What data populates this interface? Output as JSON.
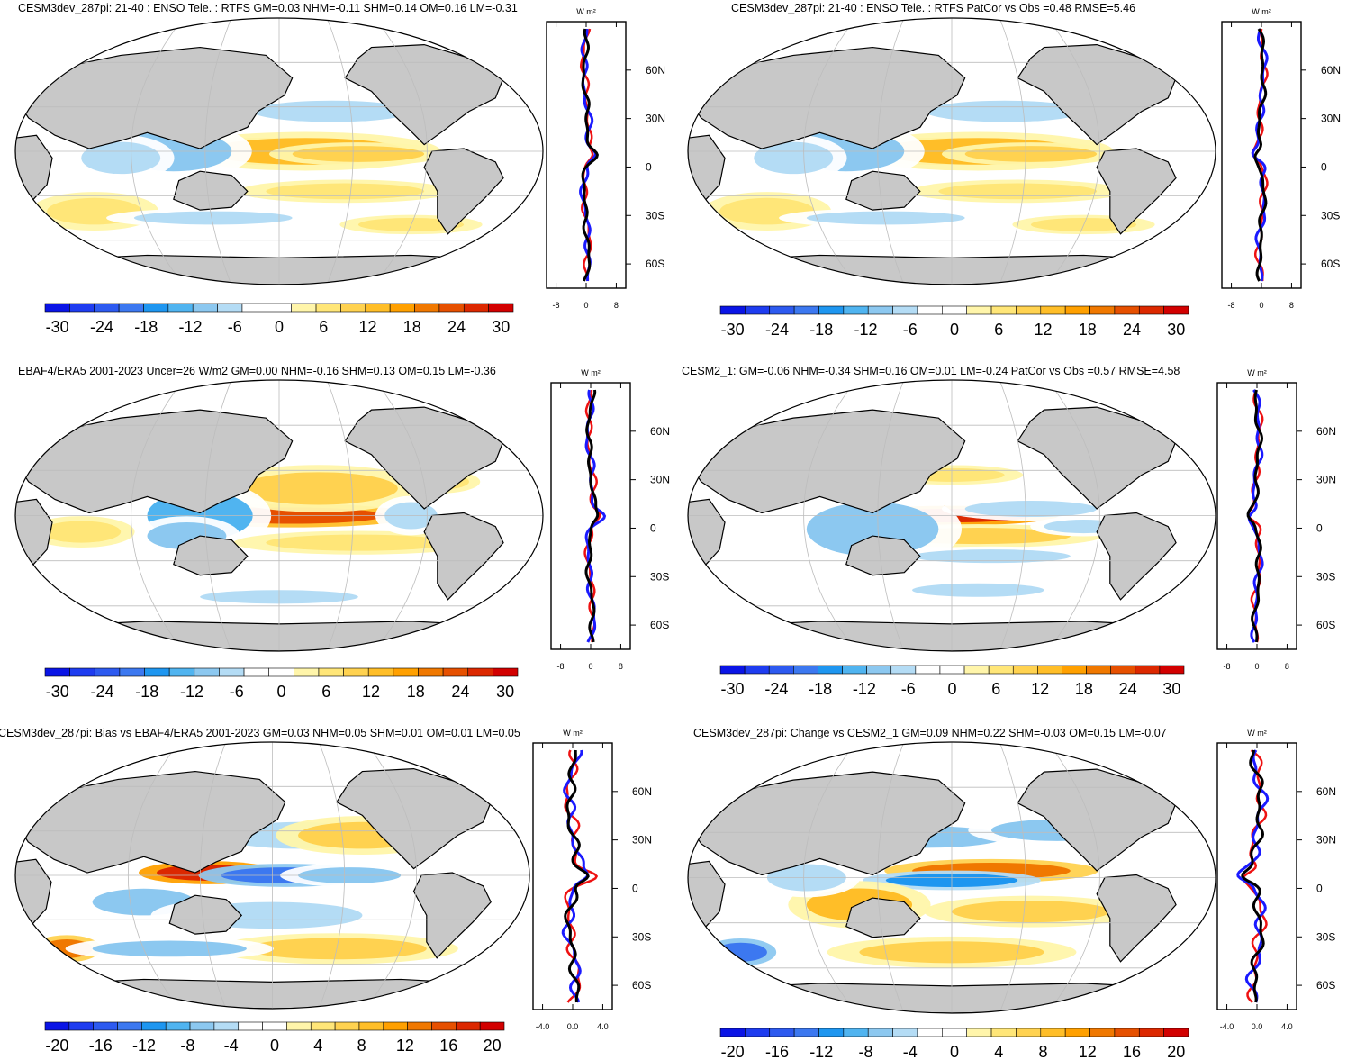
{
  "colors": {
    "land": "#c8c8c8",
    "ocean": "#ffffff",
    "grid": "#bdbdbd",
    "coast": "#000000",
    "series_model": "#1a1aff",
    "series_obs": "#ee1111",
    "series_diff": "#000000"
  },
  "palette": [
    "#0a14e6",
    "#1e3cf0",
    "#2d5af0",
    "#3c78f0",
    "#1e96f0",
    "#50b4f0",
    "#8cc8f0",
    "#b4dcf5",
    "#ffffff",
    "#ffffff",
    "#fff5aa",
    "#ffe678",
    "#ffd250",
    "#ffbe28",
    "#ffa000",
    "#f07800",
    "#e65000",
    "#dc2800",
    "#d20000"
  ],
  "zonal_unit": "W m²",
  "chart_data": [
    {
      "id": "p1",
      "type": "heatmap",
      "title": "CESM3dev_287pi: 21-40 : ENSO Tele. : RTFS GM=0.03 NHM=-0.11 SHM=0.14 OM=0.16 LM=-0.31",
      "colorbar_ticks": [
        "-30",
        "-24",
        "-18",
        "-12",
        "-6",
        "0",
        "6",
        "12",
        "18",
        "24",
        "30"
      ],
      "zonal_xticks": [
        "-8",
        "0",
        "8"
      ],
      "zonal_yticks": [
        "60N",
        "30N",
        "0",
        "30S",
        "60S"
      ]
    },
    {
      "id": "p2",
      "type": "heatmap",
      "title": "CESM3dev_287pi: 21-40 : ENSO Tele. : RTFS PatCor vs Obs =0.48 RMSE=5.46",
      "colorbar_ticks": [
        "-30",
        "-24",
        "-18",
        "-12",
        "-6",
        "0",
        "6",
        "12",
        "18",
        "24",
        "30"
      ],
      "zonal_xticks": [
        "-8",
        "0",
        "8"
      ],
      "zonal_yticks": [
        "60N",
        "30N",
        "0",
        "30S",
        "60S"
      ]
    },
    {
      "id": "p3",
      "type": "heatmap",
      "title": "EBAF4/ERA5 2001-2023 Uncer=26 W/m2 GM=0.00 NHM=-0.16 SHM=0.13 OM=0.15 LM=-0.36",
      "colorbar_ticks": [
        "-30",
        "-24",
        "-18",
        "-12",
        "-6",
        "0",
        "6",
        "12",
        "18",
        "24",
        "30"
      ],
      "zonal_xticks": [
        "-8",
        "0",
        "8"
      ],
      "zonal_yticks": [
        "60N",
        "30N",
        "0",
        "30S",
        "60S"
      ]
    },
    {
      "id": "p4",
      "type": "heatmap",
      "title": "CESM2_1: GM=-0.06 NHM=-0.34 SHM=0.16 OM=0.01 LM=-0.24 PatCor vs Obs =0.57 RMSE=4.58",
      "colorbar_ticks": [
        "-30",
        "-24",
        "-18",
        "-12",
        "-6",
        "0",
        "6",
        "12",
        "18",
        "24",
        "30"
      ],
      "zonal_xticks": [
        "-8",
        "0",
        "8"
      ],
      "zonal_yticks": [
        "60N",
        "30N",
        "0",
        "30S",
        "60S"
      ]
    },
    {
      "id": "p5",
      "type": "heatmap",
      "title": "CESM3dev_287pi: Bias vs EBAF4/ERA5 2001-2023 GM=0.03 NHM=0.05 SHM=0.01 OM=0.01 LM=0.05",
      "colorbar_ticks": [
        "-20",
        "-16",
        "-12",
        "-8",
        "-4",
        "0",
        "4",
        "8",
        "12",
        "16",
        "20"
      ],
      "zonal_xticks": [
        "-4.0",
        "0.0",
        "4.0"
      ],
      "zonal_yticks": [
        "60N",
        "30N",
        "0",
        "30S",
        "60S"
      ]
    },
    {
      "id": "p6",
      "type": "heatmap",
      "title": "CESM3dev_287pi: Change vs CESM2_1 GM=0.09 NHM=0.22 SHM=-0.03 OM=0.15 LM=-0.07",
      "colorbar_ticks": [
        "-20",
        "-16",
        "-12",
        "-8",
        "-4",
        "0",
        "4",
        "8",
        "12",
        "16",
        "20"
      ],
      "zonal_xticks": [
        "-4.0",
        "0.0",
        "4.0"
      ],
      "zonal_yticks": [
        "60N",
        "30N",
        "0",
        "30S",
        "60S"
      ]
    }
  ]
}
